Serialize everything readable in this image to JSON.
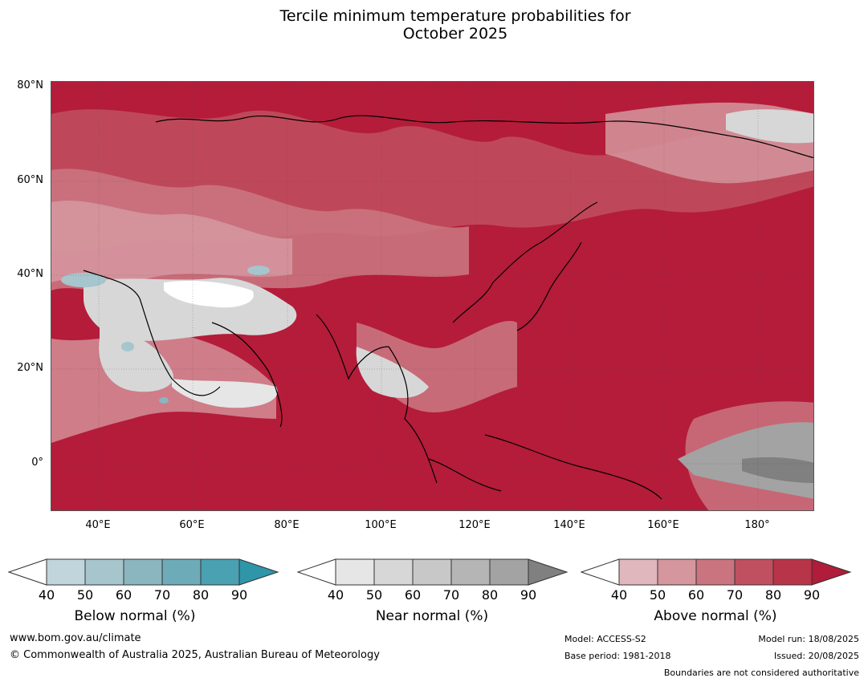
{
  "title_line1": "Tercile minimum temperature probabilities for",
  "title_line2": "October 2025",
  "map": {
    "lat_labels": [
      {
        "text": "80°N",
        "lat": 80
      },
      {
        "text": "60°N",
        "lat": 60
      },
      {
        "text": "40°N",
        "lat": 40
      },
      {
        "text": "20°N",
        "lat": 20
      },
      {
        "text": "0°",
        "lat": 0
      }
    ],
    "lon_labels": [
      {
        "text": "40°E",
        "lon": 40
      },
      {
        "text": "60°E",
        "lon": 60
      },
      {
        "text": "80°E",
        "lon": 80
      },
      {
        "text": "100°E",
        "lon": 100
      },
      {
        "text": "120°E",
        "lon": 120
      },
      {
        "text": "140°E",
        "lon": 140
      },
      {
        "text": "160°E",
        "lon": 160
      },
      {
        "text": "180°",
        "lon": 180
      }
    ],
    "lon_range": [
      30,
      192
    ],
    "lat_range": [
      -10,
      81
    ],
    "dominant_color": "#b41c3a"
  },
  "legends": [
    {
      "title": "Below normal (%)",
      "ticks": [
        "40",
        "50",
        "60",
        "70",
        "80",
        "90"
      ],
      "colors": [
        "#c0d5dc",
        "#a6c5cc",
        "#8bb5bf",
        "#6eabb8",
        "#4aa1b1"
      ],
      "arrow_color": "#2e96a8"
    },
    {
      "title": "Near normal (%)",
      "ticks": [
        "40",
        "50",
        "60",
        "70",
        "80",
        "90"
      ],
      "colors": [
        "#e6e6e6",
        "#d7d7d7",
        "#c8c8c8",
        "#b5b5b5",
        "#a3a3a3"
      ],
      "arrow_color": "#808080"
    },
    {
      "title": "Above normal (%)",
      "ticks": [
        "40",
        "50",
        "60",
        "70",
        "80",
        "90"
      ],
      "colors": [
        "#e0b7bd",
        "#d5969e",
        "#ca7480",
        "#c0505f",
        "#b83448"
      ],
      "arrow_color": "#b01c39"
    }
  ],
  "footer": {
    "website": "www.bom.gov.au/climate",
    "copyright": "© Commonwealth of Australia 2025, Australian Bureau of Meteorology",
    "model": "Model: ACCESS-S2",
    "base_period": "Base period: 1981-2018",
    "model_run": "Model run: 18/08/2025",
    "issued": "Issued: 20/08/2025",
    "disclaimer": "Boundaries are not considered authoritative"
  }
}
